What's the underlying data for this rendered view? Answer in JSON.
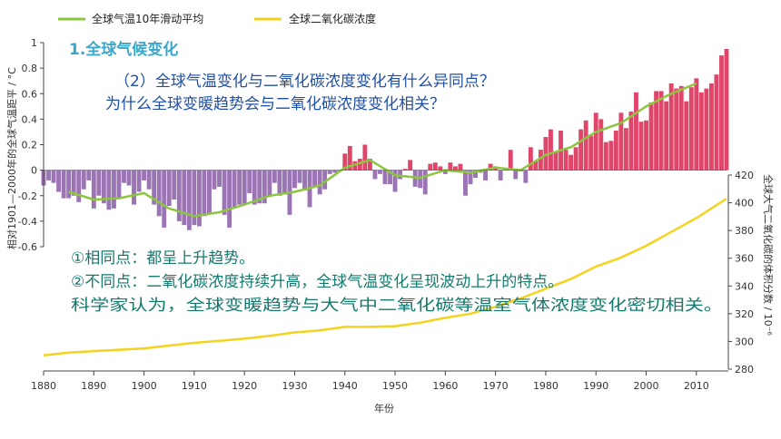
{
  "slide": {
    "section_title": "1.全球气候变化",
    "question_line1": "（2）全球气温变化与二氧化碳浓度变化有什么异同点？",
    "question_line2": "为什么全球变暖趋势会与二氧化碳浓度变化相关？",
    "answer_line1": "①相同点：都呈上升趋势。",
    "answer_line2": "②不同点：二氧化碳浓度持续升高，全球气温变化呈现波动上升的特点。",
    "answer_line3": "科学家认为，全球变暖趋势与大气中二氧化碳等温室气体浓度变化密切相关。"
  },
  "colors": {
    "bar_positive": "#e0456a",
    "bar_negative": "#9b74b4",
    "moving_avg": "#8cc63f",
    "co2": "#f5d21e",
    "axis": "#444444"
  },
  "chart_data": {
    "type": "bar+line",
    "xlabel": "年份",
    "ylabel_left": "相对1901—2000年的全球气温距平 / °C",
    "ylabel_right": "全球大气二氧化碳的体积分数 / 10⁻⁶",
    "x_ticks": [
      1880,
      1890,
      1900,
      1910,
      1920,
      1930,
      1940,
      1950,
      1960,
      1970,
      1980,
      1990,
      2000,
      2010
    ],
    "y_left_ticks": [
      "1",
      "0.8",
      "0.6",
      "0.4",
      "0.2",
      "0",
      "-0.2",
      "-0.4",
      "-0.6"
    ],
    "y_left_range": [
      -0.6,
      1.0
    ],
    "y_right_ticks": [
      "420",
      "400",
      "380",
      "360",
      "340",
      "320",
      "300",
      "280"
    ],
    "y_right_range": [
      280,
      420
    ],
    "legend": [
      {
        "name": "全球气温10年滑动平均",
        "color": "#8cc63f"
      },
      {
        "name": "全球二氧化碳浓度",
        "color": "#f5d21e"
      }
    ],
    "temperature_anomaly": {
      "years_start": 1880,
      "years_end": 2016,
      "values": [
        -0.12,
        -0.08,
        -0.1,
        -0.17,
        -0.22,
        -0.22,
        -0.2,
        -0.25,
        -0.15,
        -0.08,
        -0.3,
        -0.2,
        -0.26,
        -0.31,
        -0.3,
        -0.22,
        -0.1,
        -0.12,
        -0.27,
        -0.17,
        -0.08,
        -0.15,
        -0.27,
        -0.36,
        -0.45,
        -0.28,
        -0.23,
        -0.4,
        -0.43,
        -0.47,
        -0.43,
        -0.44,
        -0.36,
        -0.34,
        -0.15,
        -0.13,
        -0.35,
        -0.45,
        -0.3,
        -0.27,
        -0.27,
        -0.18,
        -0.27,
        -0.26,
        -0.26,
        -0.21,
        -0.1,
        -0.2,
        -0.19,
        -0.35,
        -0.14,
        -0.1,
        -0.16,
        -0.29,
        -0.13,
        -0.19,
        -0.15,
        -0.03,
        -0.02,
        -0.01,
        0.13,
        0.19,
        0.07,
        0.09,
        0.2,
        0.09,
        -0.07,
        -0.03,
        -0.11,
        -0.11,
        -0.17,
        -0.07,
        0.01,
        0.08,
        -0.13,
        -0.14,
        -0.19,
        0.05,
        0.06,
        0.03,
        -0.03,
        0.06,
        0.03,
        0.05,
        -0.2,
        -0.11,
        -0.06,
        -0.02,
        -0.08,
        0.05,
        0.03,
        -0.08,
        0.01,
        0.16,
        -0.07,
        -0.01,
        -0.1,
        0.18,
        0.07,
        0.16,
        0.26,
        0.32,
        0.14,
        0.31,
        0.16,
        0.12,
        0.18,
        0.32,
        0.39,
        0.27,
        0.45,
        0.4,
        0.22,
        0.23,
        0.31,
        0.45,
        0.33,
        0.46,
        0.61,
        0.38,
        0.39,
        0.53,
        0.62,
        0.62,
        0.54,
        0.68,
        0.64,
        0.66,
        0.54,
        0.65,
        0.72,
        0.61,
        0.64,
        0.68,
        0.75,
        0.9,
        0.95
      ]
    },
    "moving_average_10yr": [
      [
        1885,
        -0.17
      ],
      [
        1890,
        -0.23
      ],
      [
        1895,
        -0.22
      ],
      [
        1900,
        -0.18
      ],
      [
        1905,
        -0.3
      ],
      [
        1910,
        -0.36
      ],
      [
        1915,
        -0.33
      ],
      [
        1920,
        -0.27
      ],
      [
        1925,
        -0.2
      ],
      [
        1930,
        -0.17
      ],
      [
        1935,
        -0.12
      ],
      [
        1940,
        0.02
      ],
      [
        1945,
        0.08
      ],
      [
        1950,
        -0.04
      ],
      [
        1955,
        -0.06
      ],
      [
        1960,
        0.0
      ],
      [
        1965,
        -0.02
      ],
      [
        1970,
        0.02
      ],
      [
        1975,
        0.0
      ],
      [
        1980,
        0.12
      ],
      [
        1985,
        0.18
      ],
      [
        1990,
        0.3
      ],
      [
        1995,
        0.37
      ],
      [
        2000,
        0.5
      ],
      [
        2005,
        0.6
      ],
      [
        2010,
        0.68
      ]
    ],
    "co2_concentration": [
      [
        1880,
        290
      ],
      [
        1885,
        292
      ],
      [
        1890,
        293
      ],
      [
        1895,
        294
      ],
      [
        1900,
        295
      ],
      [
        1905,
        297
      ],
      [
        1910,
        299
      ],
      [
        1915,
        300.5
      ],
      [
        1920,
        302
      ],
      [
        1925,
        304
      ],
      [
        1930,
        306.5
      ],
      [
        1935,
        308
      ],
      [
        1940,
        310.5
      ],
      [
        1945,
        310.5
      ],
      [
        1950,
        311
      ],
      [
        1955,
        313.5
      ],
      [
        1960,
        317
      ],
      [
        1965,
        320
      ],
      [
        1970,
        325
      ],
      [
        1975,
        331
      ],
      [
        1980,
        338
      ],
      [
        1985,
        345
      ],
      [
        1990,
        354
      ],
      [
        1995,
        360.5
      ],
      [
        2000,
        369
      ],
      [
        2005,
        379
      ],
      [
        2010,
        389
      ],
      [
        2016,
        403
      ]
    ]
  }
}
